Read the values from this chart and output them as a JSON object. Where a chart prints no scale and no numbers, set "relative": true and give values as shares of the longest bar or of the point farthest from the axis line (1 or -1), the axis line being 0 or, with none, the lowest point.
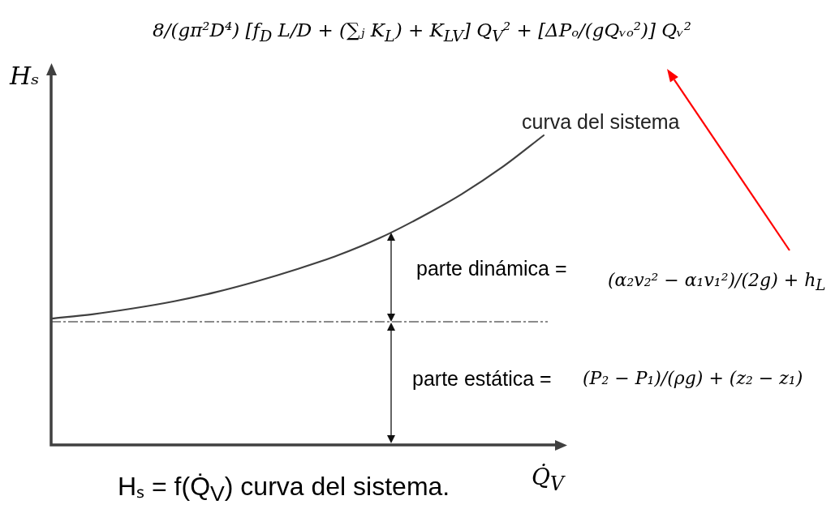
{
  "chart_data": {
    "type": "line",
    "title": "8/(gπ²D⁴) [f$_{D}$ L/D + (∑ⱼ K$_{L}$) + K$_{LV}$] Q$_{V}$² + [ΔPₒ/(gQᵥₒ²)] Qᵥ²",
    "xlabel": "Q̇$_{V}$",
    "ylabel": "Hₛ",
    "categories": [
      null,
      null,
      null,
      null,
      null,
      null,
      null,
      null,
      null,
      null,
      null,
      null,
      null
    ],
    "series": [
      {
        "name": "curva del sistema",
        "color": "#404040",
        "values": [
          0.408,
          0.422,
          0.441,
          0.464,
          0.493,
          0.528,
          0.568,
          0.613,
          0.668,
          0.735,
          0.81,
          0.898,
          1
        ]
      }
    ],
    "relative": true,
    "ref_lines": [
      {
        "axis": "y",
        "value": 0.398,
        "color": "#666666",
        "line_style": "dashed"
      }
    ],
    "annotations": [
      "parte dinámica =",
      "(α₂v₂² − α₁v₁²)/(2g) + h$_{L}$",
      "parte estática =",
      "(P₂ − P₁)/(ρg) + (z₂ − z₁)",
      "Hₛ = f(Q̇$_{V}$) curva del sistema."
    ],
    "legend": false,
    "tick_labels": false,
    "marker": "none"
  }
}
